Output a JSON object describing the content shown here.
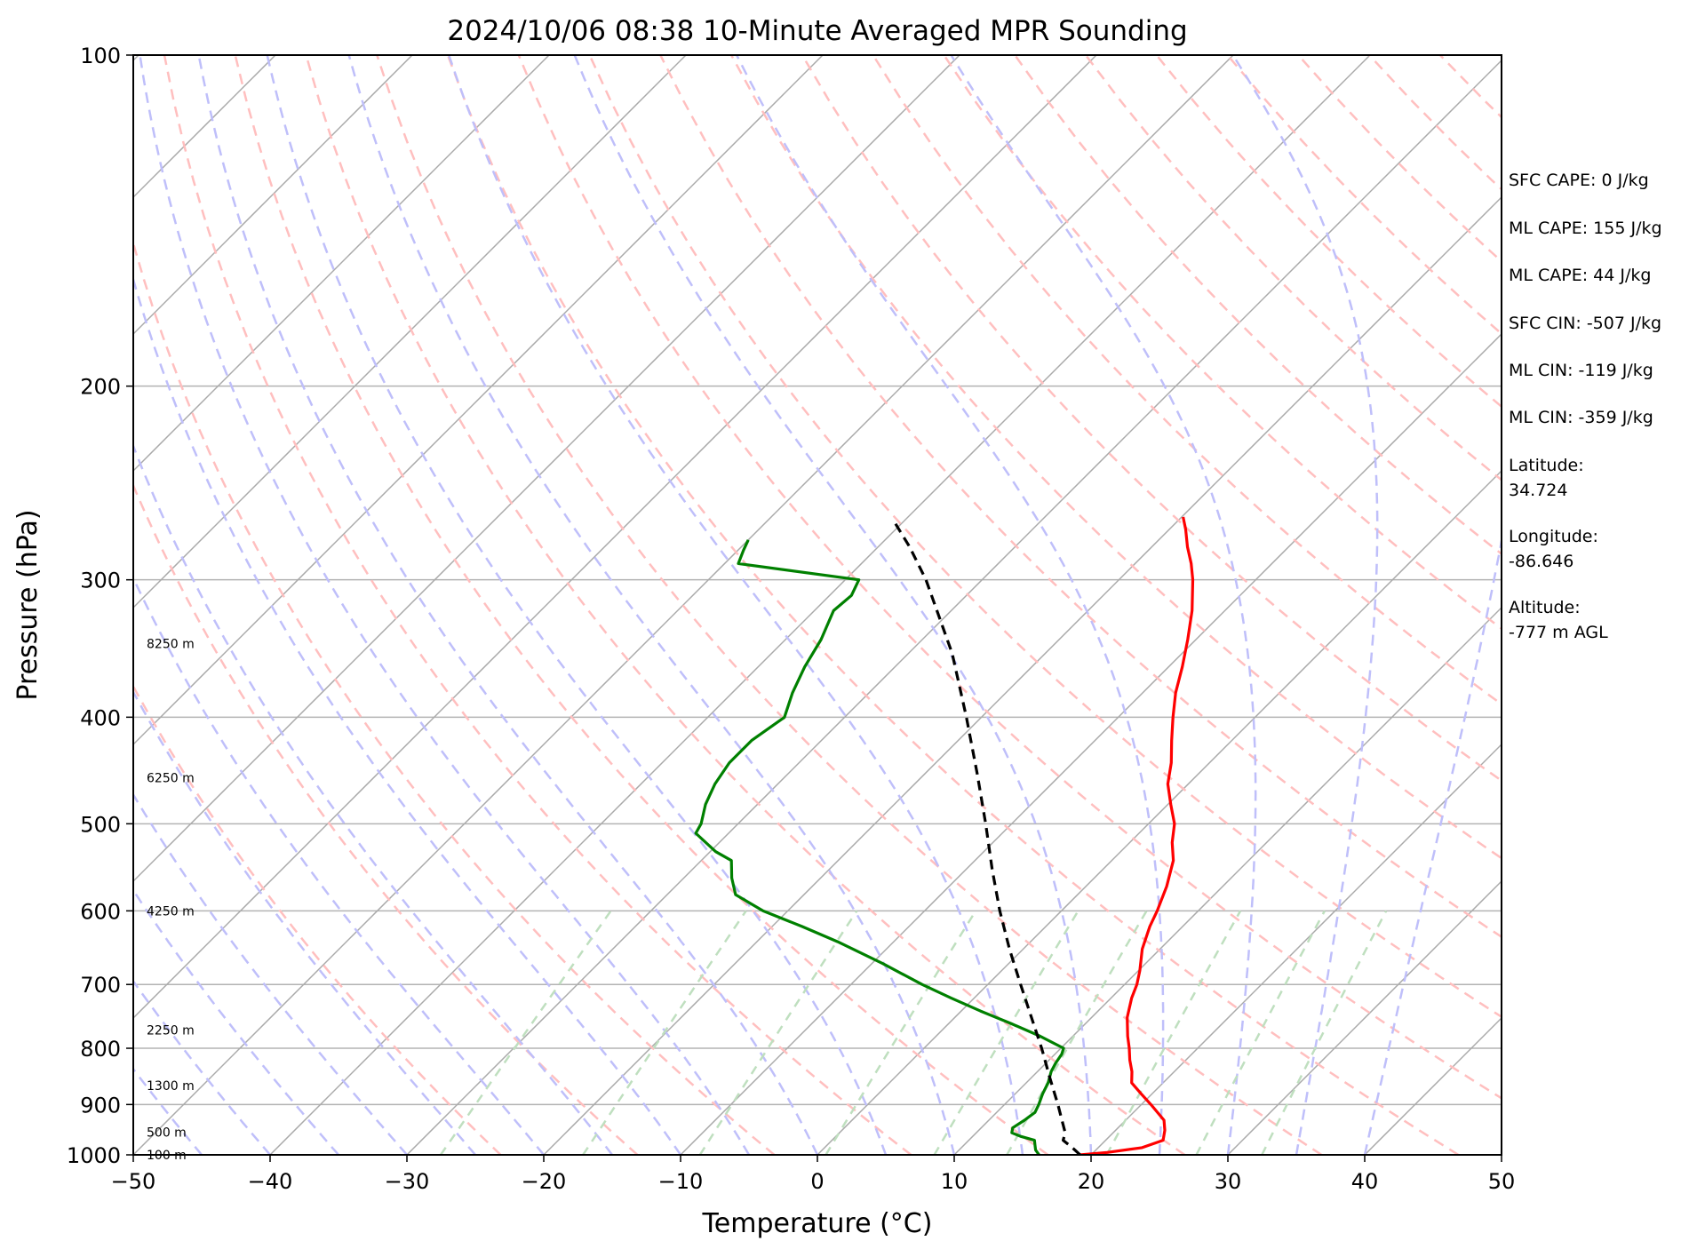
{
  "chart_data": {
    "type": "line",
    "title": "2024/10/06 08:38 10-Minute Averaged MPR Sounding",
    "xlabel": "Temperature (°C)",
    "ylabel": "Pressure (hPa)",
    "xlim": [
      -50,
      50
    ],
    "ylim": [
      1000,
      100
    ],
    "y_scale": "log",
    "skew": "skew-T",
    "x_ticks": [
      "−50",
      "−40",
      "−30",
      "−20",
      "−10",
      "0",
      "10",
      "20",
      "30",
      "40",
      "50"
    ],
    "x_tick_values": [
      -50,
      -40,
      -30,
      -20,
      -10,
      0,
      10,
      20,
      30,
      40,
      50
    ],
    "y_ticks": [
      "100",
      "200",
      "300",
      "400",
      "500",
      "600",
      "700",
      "800",
      "900",
      "1000"
    ],
    "y_tick_values": [
      100,
      200,
      300,
      400,
      500,
      600,
      700,
      800,
      900,
      1000
    ],
    "grid": true,
    "series": [
      {
        "color": "#ff0000",
        "style": "solid",
        "points": [
          [
            1000,
            19.2
          ],
          [
            995,
            21
          ],
          [
            985,
            23.2
          ],
          [
            970,
            24.2
          ],
          [
            950,
            23.6
          ],
          [
            930,
            22.8
          ],
          [
            900,
            20.7
          ],
          [
            880,
            19.2
          ],
          [
            860,
            17.7
          ],
          [
            840,
            16.9
          ],
          [
            820,
            15.9
          ],
          [
            800,
            15.0
          ],
          [
            780,
            14.0
          ],
          [
            750,
            12.6
          ],
          [
            720,
            11.5
          ],
          [
            700,
            10.9
          ],
          [
            680,
            10.1
          ],
          [
            650,
            8.7
          ],
          [
            620,
            7.6
          ],
          [
            600,
            7.0
          ],
          [
            570,
            5.9
          ],
          [
            540,
            4.5
          ],
          [
            520,
            3.1
          ],
          [
            500,
            1.9
          ],
          [
            480,
            0.2
          ],
          [
            460,
            -1.5
          ],
          [
            440,
            -2.8
          ],
          [
            420,
            -4.4
          ],
          [
            400,
            -6.0
          ],
          [
            380,
            -7.6
          ],
          [
            360,
            -9.0
          ],
          [
            340,
            -10.6
          ],
          [
            320,
            -12.4
          ],
          [
            300,
            -14.6
          ],
          [
            290,
            -15.9
          ],
          [
            280,
            -17.4
          ],
          [
            270,
            -18.8
          ],
          [
            263,
            -19.9
          ]
        ]
      },
      {
        "color": "#008000",
        "style": "solid",
        "points": [
          [
            1000,
            16.2
          ],
          [
            990,
            15.6
          ],
          [
            980,
            15.2
          ],
          [
            970,
            14.8
          ],
          [
            962,
            13.5
          ],
          [
            955,
            12.6
          ],
          [
            945,
            12.3
          ],
          [
            930,
            12.6
          ],
          [
            915,
            12.8
          ],
          [
            900,
            12.5
          ],
          [
            880,
            12.0
          ],
          [
            860,
            11.6
          ],
          [
            840,
            11.0
          ],
          [
            825,
            10.7
          ],
          [
            810,
            10.5
          ],
          [
            800,
            10.2
          ],
          [
            780,
            7.6
          ],
          [
            760,
            4.6
          ],
          [
            740,
            1.4
          ],
          [
            720,
            -1.7
          ],
          [
            700,
            -4.8
          ],
          [
            670,
            -9.2
          ],
          [
            640,
            -14.1
          ],
          [
            620,
            -17.8
          ],
          [
            600,
            -21.8
          ],
          [
            580,
            -25.0
          ],
          [
            560,
            -26.5
          ],
          [
            540,
            -27.8
          ],
          [
            530,
            -29.6
          ],
          [
            510,
            -32.4
          ],
          [
            500,
            -32.7
          ],
          [
            480,
            -33.8
          ],
          [
            460,
            -34.6
          ],
          [
            440,
            -35.1
          ],
          [
            420,
            -35.1
          ],
          [
            400,
            -34.4
          ],
          [
            380,
            -35.6
          ],
          [
            360,
            -36.6
          ],
          [
            340,
            -37.4
          ],
          [
            320,
            -38.6
          ],
          [
            310,
            -38.4
          ],
          [
            300,
            -39.0
          ],
          [
            290,
            -49.0
          ],
          [
            282,
            -49.6
          ],
          [
            276,
            -50.0
          ]
        ]
      },
      {
        "color": "#000000",
        "style": "dashed",
        "points": [
          [
            1000,
            19.2
          ],
          [
            985,
            18.1
          ],
          [
            970,
            16.9
          ],
          [
            955,
            16.5
          ],
          [
            900,
            13.9
          ],
          [
            850,
            11.3
          ],
          [
            800,
            8.6
          ],
          [
            750,
            5.6
          ],
          [
            700,
            2.4
          ],
          [
            650,
            -1.0
          ],
          [
            600,
            -4.5
          ],
          [
            550,
            -8.1
          ],
          [
            500,
            -11.9
          ],
          [
            450,
            -16.2
          ],
          [
            400,
            -21.1
          ],
          [
            350,
            -26.8
          ],
          [
            300,
            -34.1
          ],
          [
            280,
            -37.7
          ],
          [
            265,
            -40.8
          ]
        ]
      }
    ],
    "height_labels": [
      "100 m",
      "500 m",
      "1300 m",
      "2250 m",
      "4250 m",
      "6250 m",
      "8250 m"
    ],
    "height_label_pressures": [
      1000,
      954,
      865,
      770,
      600,
      454,
      343
    ],
    "reference_lines": [
      {
        "kind": "isotherms",
        "color": "#a9a9a9",
        "style": "solid",
        "temps": [
          -150,
          -140,
          -130,
          -120,
          -110,
          -100,
          -90,
          -80,
          -70,
          -60,
          -50,
          -40,
          -30,
          -20,
          -10,
          0,
          10,
          20,
          30,
          40,
          50
        ]
      },
      {
        "kind": "dry adiabats",
        "color": "#ffbfbf",
        "style": "dashed",
        "theta_k": [
          250,
          260,
          270,
          280,
          290,
          300,
          310,
          320,
          330,
          340,
          350,
          360,
          370,
          380,
          390,
          400,
          410,
          420,
          430,
          440,
          450,
          460,
          470,
          480,
          490,
          500
        ]
      },
      {
        "kind": "moist adiabats",
        "color": "#bfbffa",
        "style": "dashed",
        "surface_temps_c": [
          -45,
          -40,
          -35,
          -30,
          -25,
          -20,
          -15,
          -10,
          -5,
          0,
          5,
          10,
          15,
          20,
          25,
          30,
          35,
          40
        ]
      },
      {
        "kind": "mixing ratio",
        "color": "#bfdfbf",
        "style": "dashed",
        "from_hpa": 1000,
        "to_hpa": 600,
        "g_per_kg": [
          0.4,
          1,
          2,
          4,
          7,
          10,
          16,
          24,
          32
        ]
      }
    ]
  },
  "info_panel": [
    {
      "text": "SFC CAPE: 0 J/kg"
    },
    {
      "text": "ML CAPE: 155 J/kg"
    },
    {
      "text": "ML CAPE: 44 J/kg"
    },
    {
      "text": "SFC CIN: -507 J/kg"
    },
    {
      "text": "ML CIN: -119 J/kg"
    },
    {
      "text": "ML CIN: -359 J/kg"
    },
    {
      "text": "Latitude:"
    },
    {
      "text": "34.724"
    },
    {
      "text": "Longitude:"
    },
    {
      "text": "-86.646"
    },
    {
      "text": "Altitude:"
    },
    {
      "text": "-777 m AGL"
    }
  ]
}
